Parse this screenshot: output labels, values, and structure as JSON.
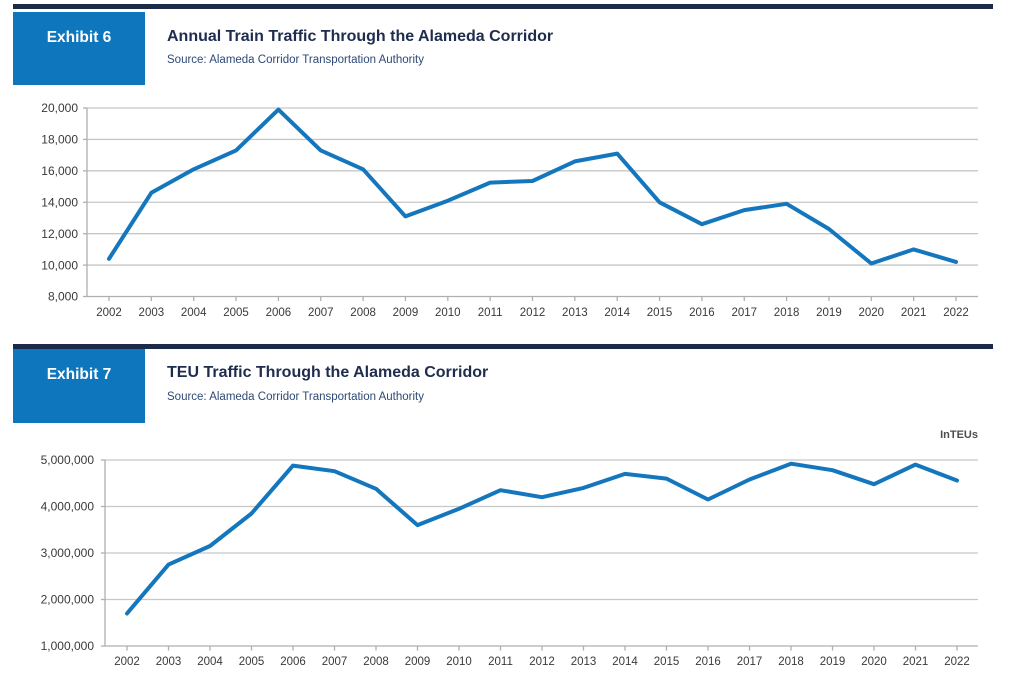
{
  "colors": {
    "line": "#1477BD",
    "grid": "#C7C7C7",
    "axis": "#AFAFAF",
    "tick_text": "#3A3A3A",
    "badge_bg": "#0D76BC",
    "badge_text": "#FFFFFF",
    "top_rule": "#1B2A48",
    "title": "#1E2C4D",
    "source": "#2E4977",
    "unit": "#4D4D4D"
  },
  "exhibits": [
    {
      "badge": "Exhibit 6",
      "title": "Annual Train Traffic Through the Alameda Corridor",
      "source": "Source: Alameda Corridor Transportation Authority"
    },
    {
      "badge": "Exhibit 7",
      "title": "TEU Traffic Through the Alameda Corridor",
      "source": "Source: Alameda Corridor Transportation Authority",
      "unit_label": "InTEUs"
    }
  ],
  "chart_data": [
    {
      "type": "line",
      "title": "Annual Train Traffic Through the Alameda Corridor",
      "xlabel": "",
      "ylabel": "",
      "legend_position": "none",
      "grid": true,
      "line_color": "#1477BD",
      "x": [
        "2002",
        "2003",
        "2004",
        "2005",
        "2006",
        "2007",
        "2008",
        "2009",
        "2010",
        "2011",
        "2012",
        "2013",
        "2014",
        "2015",
        "2016",
        "2017",
        "2018",
        "2019",
        "2020",
        "2021",
        "2022"
      ],
      "values": [
        10400,
        14600,
        16100,
        17300,
        19900,
        17300,
        16100,
        13100,
        14100,
        15250,
        15350,
        16600,
        17100,
        14000,
        12600,
        13500,
        13900,
        12300,
        10100,
        11000,
        10200
      ],
      "ylim": [
        8000,
        20000
      ],
      "ytick_values": [
        8000,
        10000,
        12000,
        14000,
        16000,
        18000,
        20000
      ],
      "ytick_labels": [
        "8,000",
        "10,000",
        "12,000",
        "14,000",
        "16,000",
        "18,000",
        "20,000"
      ]
    },
    {
      "type": "line",
      "title": "TEU Traffic Through the Alameda Corridor",
      "xlabel": "",
      "ylabel": "InTEUs",
      "legend_position": "none",
      "grid": true,
      "line_color": "#1477BD",
      "x": [
        "2002",
        "2003",
        "2004",
        "2005",
        "2006",
        "2007",
        "2008",
        "2009",
        "2010",
        "2011",
        "2012",
        "2013",
        "2014",
        "2015",
        "2016",
        "2017",
        "2018",
        "2019",
        "2020",
        "2021",
        "2022"
      ],
      "values": [
        1700000,
        2750000,
        3150000,
        3850000,
        4880000,
        4760000,
        4380000,
        3600000,
        3950000,
        4350000,
        4200000,
        4400000,
        4700000,
        4600000,
        4150000,
        4580000,
        4920000,
        4780000,
        4480000,
        4900000,
        4560000
      ],
      "ylim": [
        1000000,
        5000000
      ],
      "ytick_values": [
        1000000,
        2000000,
        3000000,
        4000000,
        5000000
      ],
      "ytick_labels": [
        "1,000,000",
        "2,000,000",
        "3,000,000",
        "4,000,000",
        "5,000,000"
      ]
    }
  ]
}
